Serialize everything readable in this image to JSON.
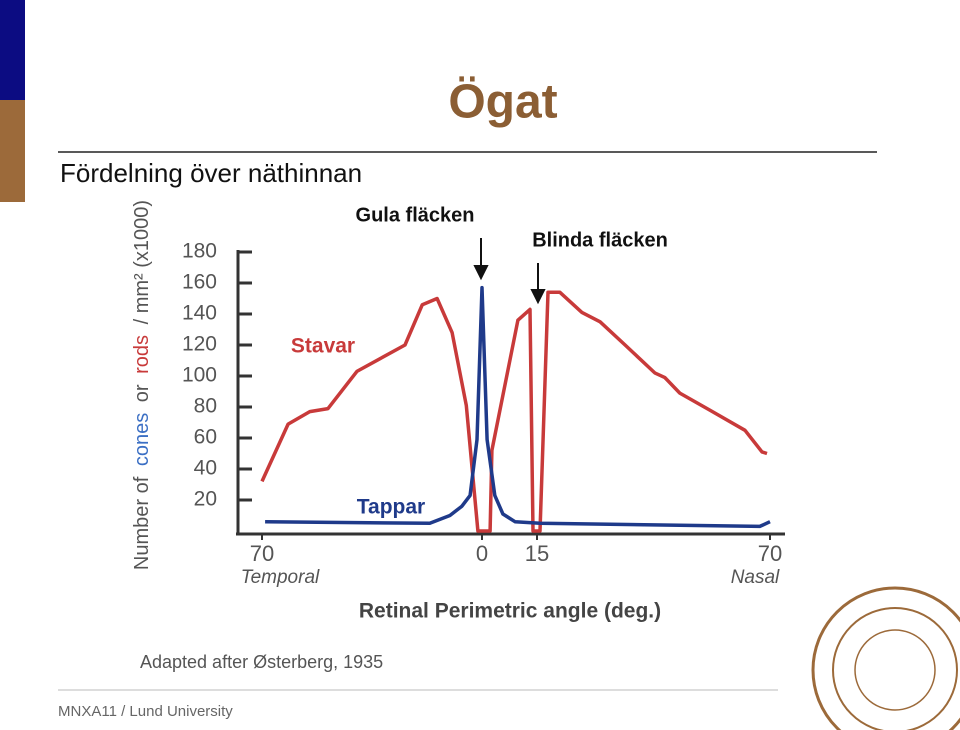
{
  "slide": {
    "title": "Ögat",
    "subtitle": "Fördelning över näthinnan",
    "footer": "MNXA11 / Lund University"
  },
  "chart_data": {
    "type": "line",
    "ylabel": [
      "Number of",
      "cones",
      "or",
      "rods",
      "/ mm² (x1000)"
    ],
    "xlabel": "Retinal Perimetric angle (deg.)",
    "x_side_labels": [
      "Temporal",
      "Nasal"
    ],
    "source": "Adapted after Østerberg, 1935",
    "annotations": [
      "Gula fläcken",
      "Blinda fläcken"
    ],
    "xlim": [
      -70,
      70
    ],
    "xticks": [
      {
        "value": -70,
        "label": "70"
      },
      0,
      15,
      70
    ],
    "ylim": [
      0,
      180
    ],
    "yticks": [
      20,
      40,
      60,
      80,
      100,
      120,
      140,
      160,
      180
    ],
    "series": [
      {
        "name": "Stavar",
        "color": "#c83a3a",
        "x": [
          -70,
          -61.7,
          -54.8,
          -49,
          -39.8,
          -24.5,
          -19,
          -14.3,
          -9.5,
          -5,
          -1.3,
          2.2,
          2.7,
          9.8,
          13.1,
          13.9,
          15.7,
          17.6,
          20.4,
          25.6,
          29.9,
          35.8,
          42.8,
          45.2,
          48.7,
          55.8,
          64.1,
          68.1,
          69.3
        ],
        "values": [
          32,
          69,
          77,
          79,
          103,
          120,
          146,
          150,
          128,
          81,
          0,
          0,
          52,
          136,
          143,
          0,
          0,
          154,
          154,
          141,
          135,
          120,
          102,
          99,
          89,
          78,
          65,
          51,
          50
        ]
      },
      {
        "name": "Tappar",
        "color": "#1f3a8a",
        "x": [
          -69,
          -16.6,
          -10.2,
          -6.4,
          -3.8,
          -1.6,
          0,
          1.4,
          3.5,
          5.7,
          9,
          15.7,
          67.6,
          70
        ],
        "values": [
          6,
          5,
          10,
          16,
          23,
          59,
          157,
          59,
          23,
          11,
          6,
          5,
          3,
          6
        ]
      }
    ]
  }
}
